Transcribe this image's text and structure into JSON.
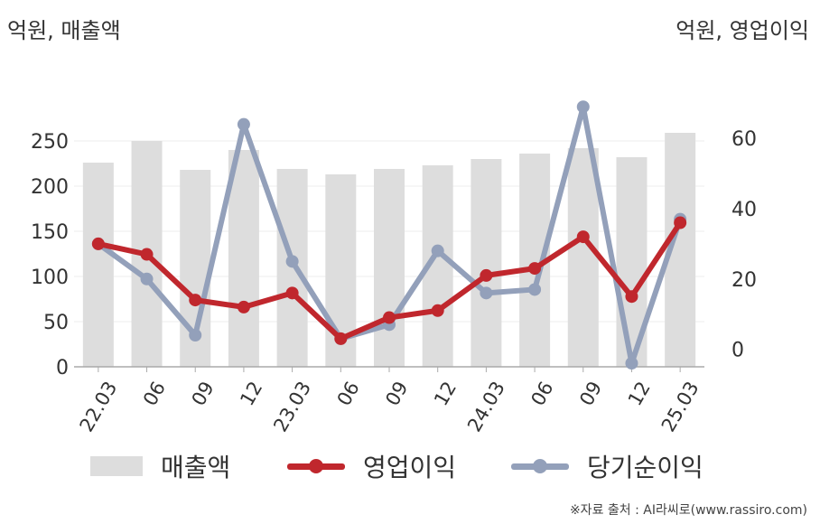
{
  "units": {
    "left": "억원, 매출액",
    "right": "억원, 영업이익"
  },
  "legend": {
    "revenue": "매출액",
    "operating_profit": "영업이익",
    "net_income": "당기순이익"
  },
  "source": "※자료 출처 : AI라씨로(www.rassiro.com)",
  "colors": {
    "revenue": "#dddddd",
    "operating_profit": "#c0272d",
    "net_income": "#93a0ba",
    "axis": "#aaaaaa",
    "grid": "#eeeeee"
  },
  "chart_data": {
    "type": "bar",
    "categories": [
      "22.03",
      "06",
      "09",
      "12",
      "23.03",
      "06",
      "09",
      "12",
      "24.03",
      "06",
      "09",
      "12",
      "25.03"
    ],
    "left_axis": {
      "ylim": [
        0,
        280
      ],
      "ticks": [
        0,
        50,
        100,
        150,
        200,
        250
      ]
    },
    "right_axis": {
      "ylim": [
        -5,
        67
      ],
      "ticks": [
        0,
        20,
        40,
        60
      ]
    },
    "series": [
      {
        "name": "매출액",
        "type": "bar",
        "axis": "left",
        "values": [
          226,
          250,
          218,
          240,
          219,
          213,
          219,
          223,
          230,
          236,
          242,
          232,
          259
        ]
      },
      {
        "name": "영업이익",
        "type": "line",
        "axis": "right",
        "values": [
          30,
          27,
          14,
          12,
          16,
          3,
          9,
          11,
          21,
          23,
          32,
          15,
          36
        ]
      },
      {
        "name": "당기순이익",
        "type": "line",
        "axis": "right",
        "values": [
          30,
          20,
          4,
          64,
          25,
          3,
          7,
          28,
          16,
          17,
          69,
          -4,
          37
        ]
      }
    ]
  }
}
